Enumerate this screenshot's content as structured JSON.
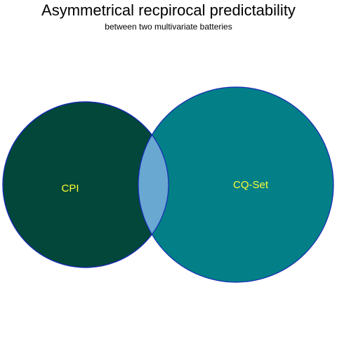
{
  "diagram": {
    "type": "venn",
    "title": "Asymmetrical recpirocal predictability",
    "subtitle": "between two multivariate batteries",
    "sets": [
      {
        "name": "CPI",
        "fill": "#02473a"
      },
      {
        "name": "CQ-Set",
        "fill": "#027f87"
      }
    ],
    "overlap_fill": "#69a8d1",
    "outline_color": "#1a2bb8",
    "label_color": "#ffff33"
  }
}
